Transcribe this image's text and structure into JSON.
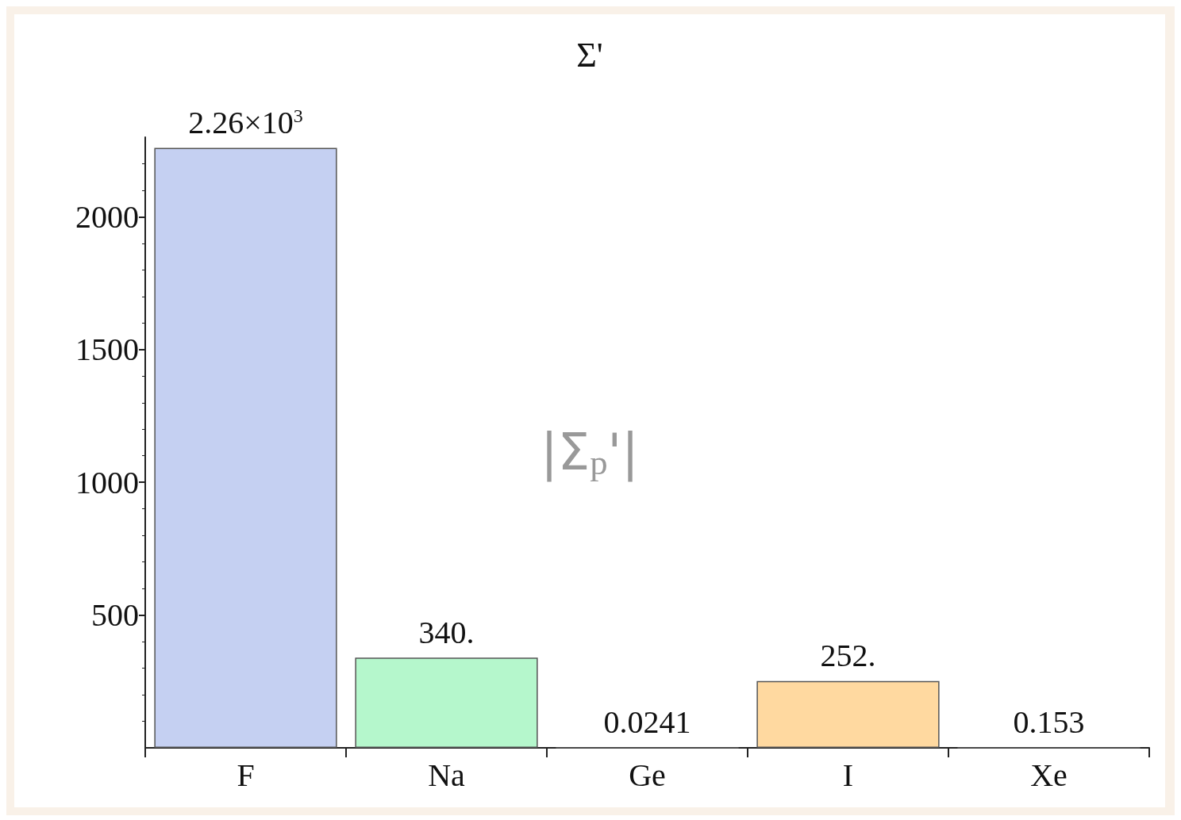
{
  "chart_data": {
    "type": "bar",
    "title": "Σ'",
    "categories": [
      "F",
      "Na",
      "Ge",
      "I",
      "Xe"
    ],
    "values": [
      2260,
      340,
      0.0241,
      252,
      0.153
    ],
    "colors": [
      "#c5d0f2",
      "#b5f7cc",
      "#555555",
      "#ffd9a0",
      "#555555"
    ],
    "value_labels": [
      "2.26×10$^{3}$",
      "340.",
      "0.0241",
      "252.",
      "0.153"
    ],
    "ylim": [
      0,
      2300
    ],
    "yticks": [
      500,
      1000,
      1500,
      2000
    ],
    "grid": false,
    "annotations": [
      "|Σ$_{p}$'|"
    ]
  }
}
